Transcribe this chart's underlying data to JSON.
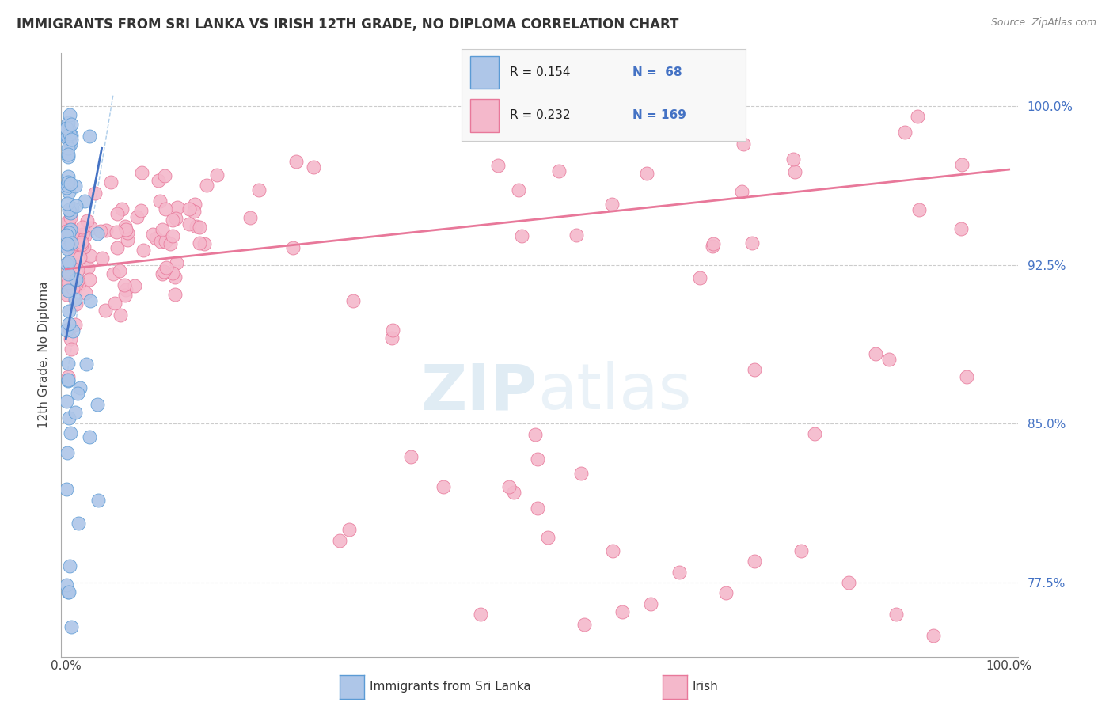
{
  "title": "IMMIGRANTS FROM SRI LANKA VS IRISH 12TH GRADE, NO DIPLOMA CORRELATION CHART",
  "source": "Source: ZipAtlas.com",
  "ylabel": "12th Grade, No Diploma",
  "legend_blue_R": "R = 0.154",
  "legend_blue_N": "N =  68",
  "legend_pink_R": "R = 0.232",
  "legend_pink_N": "N = 169",
  "legend_label_blue": "Immigrants from Sri Lanka",
  "legend_label_pink": "Irish",
  "blue_color": "#aec6e8",
  "pink_color": "#f4b8cb",
  "blue_edge_color": "#5b9bd5",
  "pink_edge_color": "#e8789a",
  "blue_line_color": "#4472c4",
  "pink_line_color": "#e8789a",
  "background_color": "#ffffff",
  "grid_color": "#cccccc",
  "title_color": "#333333",
  "ytick_color": "#4472c4",
  "source_color": "#888888",
  "watermark_color": "#cce0ee",
  "title_fontsize": 12,
  "axis_fontsize": 11,
  "ytick_vals": [
    77.5,
    85.0,
    92.5,
    100.0
  ],
  "ytick_labels": [
    "77.5%",
    "85.0%",
    "92.5%",
    "100.0%"
  ],
  "xlim": [
    -0.5,
    101
  ],
  "ylim": [
    74.0,
    102.5
  ]
}
